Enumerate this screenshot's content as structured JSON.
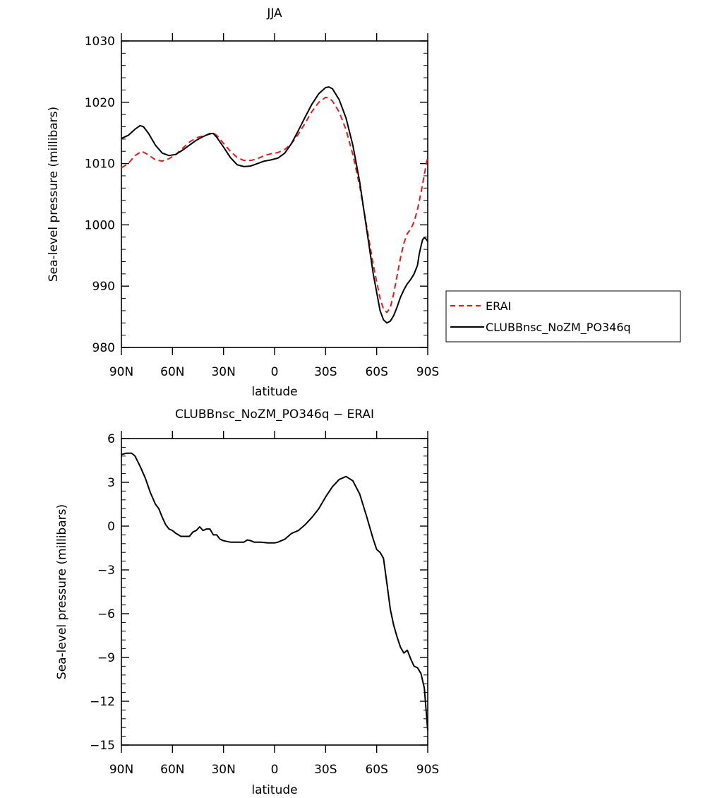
{
  "chart_data": [
    {
      "type": "line",
      "title": "JJA",
      "xlabel": "latitude",
      "ylabel": "Sea-level pressure (millibars)",
      "xlim": [
        90,
        -90
      ],
      "ylim": [
        980,
        1030
      ],
      "x_ticks": [
        {
          "value": 90,
          "label": "90N"
        },
        {
          "value": 60,
          "label": "60N"
        },
        {
          "value": 30,
          "label": "30N"
        },
        {
          "value": 0,
          "label": "0"
        },
        {
          "value": -30,
          "label": "30S"
        },
        {
          "value": -60,
          "label": "60S"
        },
        {
          "value": -90,
          "label": "90S"
        }
      ],
      "y_ticks": [
        {
          "value": 980,
          "label": "980"
        },
        {
          "value": 990,
          "label": "990"
        },
        {
          "value": 1000,
          "label": "1000"
        },
        {
          "value": 1010,
          "label": "1010"
        },
        {
          "value": 1020,
          "label": "1020"
        },
        {
          "value": 1030,
          "label": "1030"
        }
      ],
      "legend": "outside-right",
      "series": [
        {
          "name": "ERAI",
          "color": "#e31a1c",
          "dash": true,
          "points": [
            [
              90,
              1009.3
            ],
            [
              86,
              1010.0
            ],
            [
              82,
              1011.3
            ],
            [
              78,
              1012.0
            ],
            [
              74,
              1011.4
            ],
            [
              70,
              1010.6
            ],
            [
              66,
              1010.4
            ],
            [
              62,
              1010.8
            ],
            [
              58,
              1011.5
            ],
            [
              54,
              1012.5
            ],
            [
              50,
              1013.5
            ],
            [
              46,
              1014.2
            ],
            [
              42,
              1014.5
            ],
            [
              38,
              1014.8
            ],
            [
              36,
              1015.0
            ],
            [
              34,
              1014.6
            ],
            [
              30,
              1013.3
            ],
            [
              26,
              1012.0
            ],
            [
              22,
              1011.0
            ],
            [
              18,
              1010.5
            ],
            [
              14,
              1010.5
            ],
            [
              10,
              1010.8
            ],
            [
              6,
              1011.3
            ],
            [
              2,
              1011.6
            ],
            [
              -2,
              1011.8
            ],
            [
              -6,
              1012.3
            ],
            [
              -10,
              1013.3
            ],
            [
              -14,
              1014.8
            ],
            [
              -18,
              1016.6
            ],
            [
              -22,
              1018.5
            ],
            [
              -26,
              1020.0
            ],
            [
              -30,
              1020.8
            ],
            [
              -32,
              1020.7
            ],
            [
              -34,
              1020.2
            ],
            [
              -38,
              1018.4
            ],
            [
              -42,
              1015.5
            ],
            [
              -46,
              1011.5
            ],
            [
              -50,
              1006.3
            ],
            [
              -54,
              1000.0
            ],
            [
              -58,
              993.5
            ],
            [
              -62,
              988.0
            ],
            [
              -64,
              986.3
            ],
            [
              -66,
              985.7
            ],
            [
              -68,
              986.5
            ],
            [
              -70,
              988.8
            ],
            [
              -72,
              991.7
            ],
            [
              -74,
              994.6
            ],
            [
              -76,
              997.0
            ],
            [
              -78,
              998.6
            ],
            [
              -80,
              999.3
            ],
            [
              -82,
              1000.5
            ],
            [
              -84,
              1002.5
            ],
            [
              -86,
              1005.2
            ],
            [
              -88,
              1008.2
            ],
            [
              -90,
              1011.2
            ]
          ]
        },
        {
          "name": "CLUBBnsc_NoZM_PO346q",
          "color": "#000000",
          "dash": false,
          "points": [
            [
              90,
              1014.1
            ],
            [
              86,
              1014.6
            ],
            [
              82,
              1015.6
            ],
            [
              79,
              1016.2
            ],
            [
              77,
              1016.0
            ],
            [
              74,
              1014.9
            ],
            [
              70,
              1013.0
            ],
            [
              66,
              1011.7
            ],
            [
              62,
              1011.3
            ],
            [
              58,
              1011.5
            ],
            [
              54,
              1012.2
            ],
            [
              50,
              1013.0
            ],
            [
              46,
              1013.8
            ],
            [
              42,
              1014.4
            ],
            [
              38,
              1014.9
            ],
            [
              36,
              1014.9
            ],
            [
              34,
              1014.3
            ],
            [
              30,
              1012.7
            ],
            [
              26,
              1011.0
            ],
            [
              22,
              1009.8
            ],
            [
              18,
              1009.5
            ],
            [
              14,
              1009.6
            ],
            [
              10,
              1010.0
            ],
            [
              6,
              1010.4
            ],
            [
              2,
              1010.6
            ],
            [
              -2,
              1010.9
            ],
            [
              -6,
              1011.7
            ],
            [
              -10,
              1013.3
            ],
            [
              -14,
              1015.4
            ],
            [
              -18,
              1017.6
            ],
            [
              -22,
              1019.7
            ],
            [
              -26,
              1021.4
            ],
            [
              -30,
              1022.4
            ],
            [
              -32,
              1022.5
            ],
            [
              -34,
              1022.2
            ],
            [
              -38,
              1020.4
            ],
            [
              -42,
              1017.4
            ],
            [
              -46,
              1013.0
            ],
            [
              -50,
              1007.0
            ],
            [
              -54,
              999.5
            ],
            [
              -58,
              992.0
            ],
            [
              -62,
              986.0
            ],
            [
              -64,
              984.5
            ],
            [
              -66,
              984.0
            ],
            [
              -68,
              984.3
            ],
            [
              -70,
              985.2
            ],
            [
              -72,
              986.6
            ],
            [
              -74,
              988.2
            ],
            [
              -76,
              989.4
            ],
            [
              -78,
              990.4
            ],
            [
              -80,
              991.1
            ],
            [
              -82,
              992.0
            ],
            [
              -84,
              993.4
            ],
            [
              -85,
              995.2
            ],
            [
              -86,
              996.5
            ],
            [
              -87,
              997.6
            ],
            [
              -88,
              997.9
            ],
            [
              -89,
              997.7
            ],
            [
              -90,
              997.3
            ]
          ]
        }
      ]
    },
    {
      "type": "line",
      "title": "CLUBBnsc_NoZM_PO346q − ERAI",
      "xlabel": "latitude",
      "ylabel": "Sea-level pressure (millibars)",
      "xlim": [
        90,
        -90
      ],
      "ylim": [
        -15,
        6
      ],
      "x_ticks": [
        {
          "value": 90,
          "label": "90N"
        },
        {
          "value": 60,
          "label": "60N"
        },
        {
          "value": 30,
          "label": "30N"
        },
        {
          "value": 0,
          "label": "0"
        },
        {
          "value": -30,
          "label": "30S"
        },
        {
          "value": -60,
          "label": "60S"
        },
        {
          "value": -90,
          "label": "90S"
        }
      ],
      "y_ticks": [
        {
          "value": 6,
          "label": "6"
        },
        {
          "value": 3,
          "label": "3"
        },
        {
          "value": 0,
          "label": "0"
        },
        {
          "value": -3,
          "label": "−3"
        },
        {
          "value": -6,
          "label": "−6"
        },
        {
          "value": -9,
          "label": "−9"
        },
        {
          "value": -12,
          "label": "−12"
        },
        {
          "value": -15,
          "label": "−15"
        }
      ],
      "series": [
        {
          "color": "#000000",
          "dash": false,
          "points": [
            [
              90,
              4.9
            ],
            [
              87,
              5.0
            ],
            [
              84,
              5.0
            ],
            [
              82,
              4.8
            ],
            [
              79,
              4.1
            ],
            [
              76,
              3.3
            ],
            [
              73,
              2.3
            ],
            [
              70,
              1.5
            ],
            [
              68,
              1.2
            ],
            [
              66,
              0.6
            ],
            [
              64,
              0.1
            ],
            [
              62,
              -0.2
            ],
            [
              60,
              -0.3
            ],
            [
              58,
              -0.5
            ],
            [
              55,
              -0.7
            ],
            [
              52,
              -0.7
            ],
            [
              50,
              -0.7
            ],
            [
              48,
              -0.4
            ],
            [
              46,
              -0.3
            ],
            [
              44,
              -0.05
            ],
            [
              42,
              -0.3
            ],
            [
              40,
              -0.2
            ],
            [
              38,
              -0.2
            ],
            [
              36,
              -0.6
            ],
            [
              34,
              -0.6
            ],
            [
              32,
              -0.9
            ],
            [
              30,
              -1.0
            ],
            [
              26,
              -1.1
            ],
            [
              22,
              -1.1
            ],
            [
              18,
              -1.1
            ],
            [
              16,
              -0.95
            ],
            [
              14,
              -1.0
            ],
            [
              12,
              -1.1
            ],
            [
              8,
              -1.1
            ],
            [
              4,
              -1.15
            ],
            [
              0,
              -1.15
            ],
            [
              -2,
              -1.1
            ],
            [
              -6,
              -0.9
            ],
            [
              -10,
              -0.5
            ],
            [
              -14,
              -0.3
            ],
            [
              -18,
              0.1
            ],
            [
              -22,
              0.6
            ],
            [
              -26,
              1.2
            ],
            [
              -30,
              2.0
            ],
            [
              -34,
              2.7
            ],
            [
              -38,
              3.2
            ],
            [
              -42,
              3.4
            ],
            [
              -46,
              3.1
            ],
            [
              -50,
              2.2
            ],
            [
              -54,
              0.7
            ],
            [
              -58,
              -0.9
            ],
            [
              -60,
              -1.6
            ],
            [
              -62,
              -1.8
            ],
            [
              -64,
              -2.2
            ],
            [
              -66,
              -3.9
            ],
            [
              -68,
              -5.7
            ],
            [
              -70,
              -6.8
            ],
            [
              -72,
              -7.6
            ],
            [
              -74,
              -8.3
            ],
            [
              -76,
              -8.7
            ],
            [
              -78,
              -8.5
            ],
            [
              -80,
              -9.1
            ],
            [
              -82,
              -9.6
            ],
            [
              -84,
              -9.7
            ],
            [
              -86,
              -10.1
            ],
            [
              -88,
              -11.1
            ],
            [
              -90,
              -14.0
            ]
          ]
        }
      ]
    }
  ]
}
